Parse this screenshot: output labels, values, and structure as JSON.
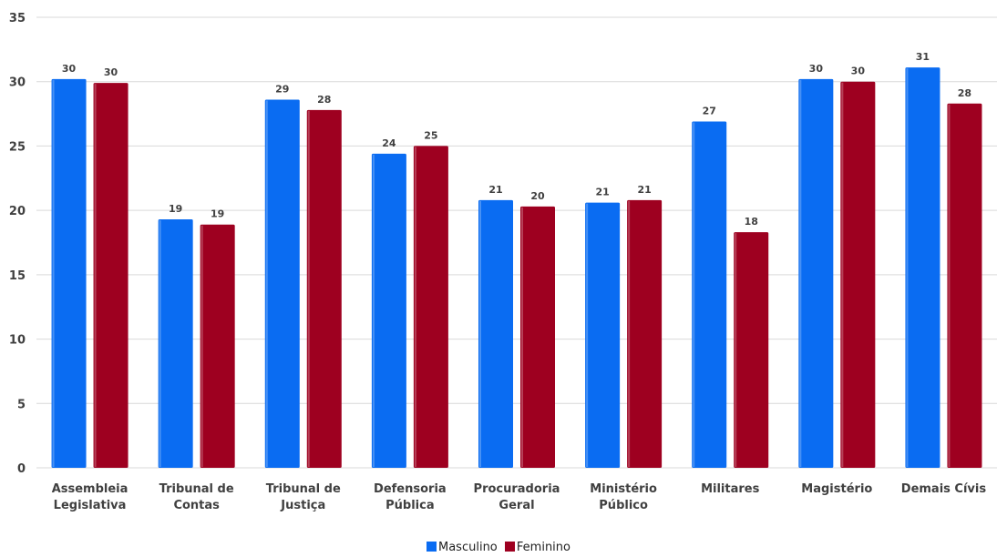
{
  "chart_data": {
    "type": "bar",
    "categories": [
      [
        "Assembleia",
        "Legislativa"
      ],
      [
        "Tribunal de",
        "Contas"
      ],
      [
        "Tribunal de",
        "Justiça"
      ],
      [
        "Defensoria",
        "Pública"
      ],
      [
        "Procuradoria",
        "Geral"
      ],
      [
        "Ministério",
        "Público"
      ],
      [
        "Militares"
      ],
      [
        "Magistério"
      ],
      [
        "Demais Cívis"
      ]
    ],
    "series": [
      {
        "name": "Masculino",
        "color": "#0a6cf2",
        "values": [
          30.2,
          19.3,
          28.6,
          24.4,
          20.8,
          20.6,
          26.9,
          30.2,
          31.1
        ],
        "labels": [
          "30",
          "19",
          "29",
          "24",
          "21",
          "21",
          "27",
          "30",
          "31"
        ]
      },
      {
        "name": "Feminino",
        "color": "#9e0020",
        "values": [
          29.9,
          18.9,
          27.8,
          25.0,
          20.3,
          20.8,
          18.3,
          30.0,
          28.3
        ],
        "labels": [
          "30",
          "19",
          "28",
          "25",
          "20",
          "21",
          "18",
          "30",
          "28"
        ]
      }
    ],
    "ylim": [
      0,
      35
    ],
    "yticks": [
      0,
      5,
      10,
      15,
      20,
      25,
      30,
      35
    ],
    "grid": true,
    "legend_position": "bottom"
  }
}
